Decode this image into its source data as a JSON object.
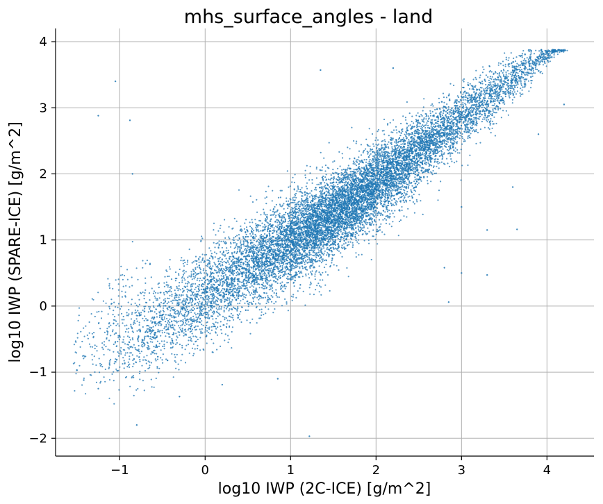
{
  "chart_data": {
    "type": "scatter",
    "title": "mhs_surface_angles - land",
    "xlabel": "log10 IWP (2C-ICE) [g/m^2]",
    "ylabel": "log10 IWP (SPARE-ICE) [g/m^2]",
    "xlim": [
      -1.75,
      4.55
    ],
    "ylim": [
      -2.27,
      4.2
    ],
    "xticks": [
      -1,
      0,
      1,
      2,
      3,
      4
    ],
    "yticks": [
      -2,
      -1,
      0,
      1,
      2,
      3,
      4
    ],
    "xtick_labels": [
      "−1",
      "0",
      "1",
      "2",
      "3",
      "4"
    ],
    "ytick_labels": [
      "−2",
      "−1",
      "0",
      "1",
      "2",
      "3",
      "4"
    ],
    "grid": true,
    "marker_color": "#1f77b4",
    "series": [
      {
        "density_centers": [
          {
            "x": -1.1,
            "y": -0.3,
            "weight": 0.6,
            "sx": 0.28,
            "sy": 0.55
          },
          {
            "x": -0.6,
            "y": -0.35,
            "weight": 1.2,
            "sx": 0.25,
            "sy": 0.4
          },
          {
            "x": -0.1,
            "y": 0.1,
            "weight": 2.0,
            "sx": 0.3,
            "sy": 0.45
          },
          {
            "x": 0.5,
            "y": 0.6,
            "weight": 3.5,
            "sx": 0.35,
            "sy": 0.45
          },
          {
            "x": 1.1,
            "y": 1.05,
            "weight": 6.0,
            "sx": 0.35,
            "sy": 0.4
          },
          {
            "x": 1.6,
            "y": 1.45,
            "weight": 6.5,
            "sx": 0.35,
            "sy": 0.38
          },
          {
            "x": 2.1,
            "y": 1.95,
            "weight": 5.0,
            "sx": 0.33,
            "sy": 0.35
          },
          {
            "x": 2.6,
            "y": 2.45,
            "weight": 3.2,
            "sx": 0.3,
            "sy": 0.3
          },
          {
            "x": 3.1,
            "y": 2.95,
            "weight": 2.0,
            "sx": 0.25,
            "sy": 0.25
          },
          {
            "x": 3.6,
            "y": 3.45,
            "weight": 1.2,
            "sx": 0.2,
            "sy": 0.18
          },
          {
            "x": 4.0,
            "y": 3.8,
            "weight": 0.5,
            "sx": 0.12,
            "sy": 0.08
          }
        ],
        "outliers": [
          [
            -1.05,
            3.4
          ],
          [
            -1.25,
            2.88
          ],
          [
            -0.88,
            2.81
          ],
          [
            -0.85,
            2.0
          ],
          [
            -1.5,
            -0.97
          ],
          [
            -1.42,
            -1.12
          ],
          [
            -1.25,
            -1.25
          ],
          [
            -0.8,
            -1.8
          ],
          [
            -0.3,
            -1.37
          ],
          [
            0.2,
            -1.19
          ],
          [
            0.85,
            -1.1
          ],
          [
            1.22,
            -1.97
          ],
          [
            3.3,
            1.15
          ],
          [
            3.65,
            1.16
          ],
          [
            3.0,
            0.5
          ],
          [
            2.8,
            0.58
          ],
          [
            3.3,
            0.47
          ],
          [
            2.85,
            0.06
          ],
          [
            3.9,
            2.6
          ],
          [
            4.2,
            3.05
          ],
          [
            3.0,
            1.5
          ],
          [
            3.6,
            1.8
          ],
          [
            1.35,
            3.57
          ],
          [
            2.2,
            3.6
          ]
        ],
        "clip_top": 3.88
      }
    ]
  }
}
